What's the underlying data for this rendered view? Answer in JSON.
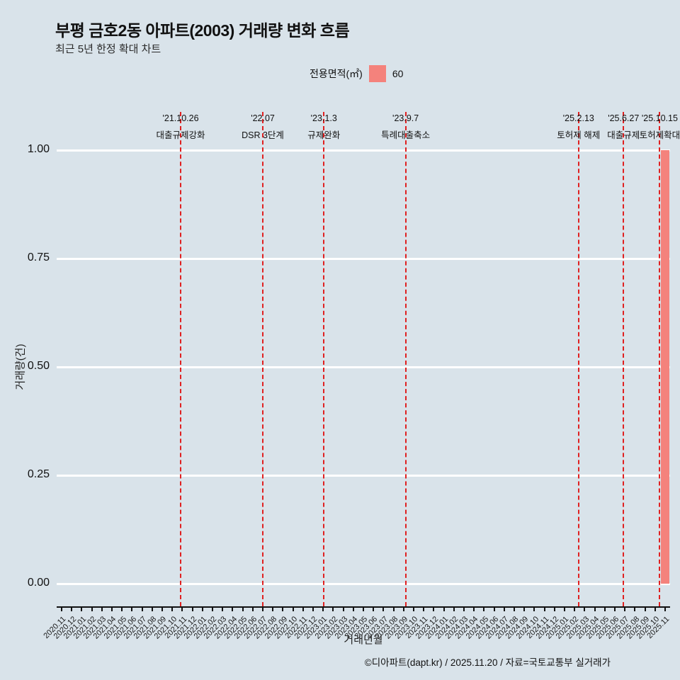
{
  "chart_data": {
    "type": "bar",
    "title": "부평 금호2동 아파트(2003) 거래량 변화 흐름",
    "subtitle": "최근 5년 한정 확대 차트",
    "xlabel": "거래년월",
    "ylabel": "거래량(건)",
    "ylim": [
      0,
      1.0
    ],
    "yticks": [
      "0.00",
      "0.25",
      "0.50",
      "0.75",
      "1.00"
    ],
    "grid": "horizontal",
    "colors": {
      "background": "#d9e3ea",
      "gridline": "#ffffff",
      "event_line": "#e02020",
      "bar": "#f4827c"
    },
    "legend": {
      "title": "전용면적(㎡)",
      "position": "top-center",
      "items": [
        {
          "label": "60",
          "color": "#f4827c"
        }
      ]
    },
    "categories": [
      "2020.11",
      "2020.12",
      "2021.01",
      "2021.02",
      "2021.03",
      "2021.04",
      "2021.05",
      "2021.06",
      "2021.07",
      "2021.08",
      "2021.09",
      "2021.10",
      "2021.11",
      "2021.12",
      "2022.01",
      "2022.02",
      "2022.03",
      "2022.04",
      "2022.05",
      "2022.06",
      "2022.07",
      "2022.08",
      "2022.09",
      "2022.10",
      "2022.11",
      "2022.12",
      "2023.01",
      "2023.02",
      "2023.03",
      "2023.04",
      "2023.05",
      "2023.06",
      "2023.07",
      "2023.08",
      "2023.09",
      "2023.10",
      "2023.11",
      "2023.12",
      "2024.01",
      "2024.02",
      "2024.03",
      "2024.04",
      "2024.05",
      "2024.06",
      "2024.07",
      "2024.08",
      "2024.09",
      "2024.10",
      "2024.11",
      "2024.12",
      "2025.01",
      "2025.02",
      "2025.03",
      "2025.04",
      "2025.05",
      "2025.06",
      "2025.07",
      "2025.08",
      "2025.09",
      "2025.10",
      "2025.11"
    ],
    "series": [
      {
        "name": "60",
        "color": "#f4827c",
        "values": [
          0,
          0,
          0,
          0,
          0,
          0,
          0,
          0,
          0,
          0,
          0,
          0,
          0,
          0,
          0,
          0,
          0,
          0,
          0,
          0,
          0,
          0,
          0,
          0,
          0,
          0,
          0,
          0,
          0,
          0,
          0,
          0,
          0,
          0,
          0,
          0,
          0,
          0,
          0,
          0,
          0,
          0,
          0,
          0,
          0,
          0,
          0,
          0,
          0,
          0,
          0,
          0,
          0,
          0,
          0,
          0,
          0,
          0,
          0,
          0,
          1
        ]
      }
    ],
    "annotations": [
      {
        "date": "'21.10.26",
        "label": "대출규제강화",
        "month_index": 11.83
      },
      {
        "date": "'22.07",
        "label": "DSR 3단계",
        "month_index": 20.0
      },
      {
        "date": "'23.1.3",
        "label": "규제완화",
        "month_index": 26.07
      },
      {
        "date": "'23.9.7",
        "label": "특례대출축소",
        "month_index": 34.2
      },
      {
        "date": "'25.2.13",
        "label": "토허제 해제",
        "month_index": 51.4
      },
      {
        "date": "'25.6.27",
        "label": "대출규제",
        "month_index": 55.87
      },
      {
        "date": "'25.10.15",
        "label": "토허제확대",
        "month_index": 59.47
      }
    ]
  },
  "footer": {
    "credit": "©디아파트(dapt.kr) / 2025.11.20 / 자료=국토교통부 실거래가"
  }
}
